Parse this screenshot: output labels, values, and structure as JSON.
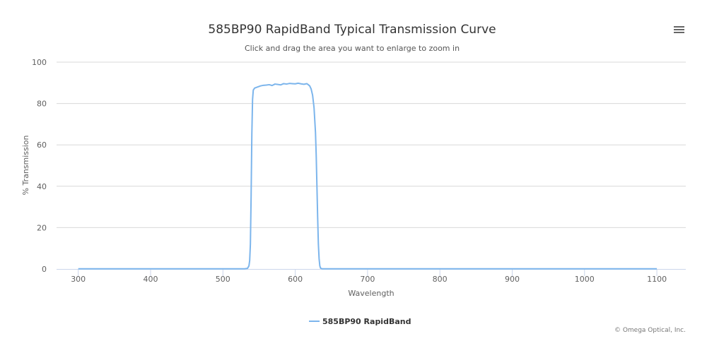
{
  "chart_data": {
    "type": "line",
    "title": "585BP90 RapidBand Typical Transmission Curve",
    "subtitle": "Click and drag the area you want to enlarge to zoom in",
    "xlabel": "Wavelength",
    "ylabel": "% Transmission",
    "xlim": [
      270,
      1140
    ],
    "ylim": [
      0,
      100
    ],
    "x_ticks": [
      300,
      400,
      500,
      600,
      700,
      800,
      900,
      1000,
      1100
    ],
    "y_ticks": [
      0,
      20,
      40,
      60,
      80,
      100
    ],
    "grid": true,
    "legend_position": "bottom-center",
    "series": [
      {
        "name": "585BP90 RapidBand",
        "color": "#7cb5ec",
        "points": [
          [
            300,
            0.1
          ],
          [
            400,
            0.1
          ],
          [
            500,
            0.1
          ],
          [
            530,
            0.1
          ],
          [
            534,
            0.3
          ],
          [
            536,
            1.5
          ],
          [
            537,
            4
          ],
          [
            538,
            12
          ],
          [
            539,
            35
          ],
          [
            540,
            65
          ],
          [
            541,
            82
          ],
          [
            542,
            86.5
          ],
          [
            544,
            87.5
          ],
          [
            548,
            88
          ],
          [
            552,
            88.5
          ],
          [
            556,
            88.8
          ],
          [
            560,
            88.9
          ],
          [
            564,
            89.1
          ],
          [
            568,
            88.7
          ],
          [
            572,
            89.4
          ],
          [
            576,
            89.2
          ],
          [
            580,
            89.0
          ],
          [
            584,
            89.6
          ],
          [
            588,
            89.4
          ],
          [
            592,
            89.7
          ],
          [
            596,
            89.6
          ],
          [
            600,
            89.5
          ],
          [
            604,
            89.8
          ],
          [
            608,
            89.5
          ],
          [
            612,
            89.3
          ],
          [
            616,
            89.6
          ],
          [
            618,
            89.1
          ],
          [
            620,
            88.5
          ],
          [
            622,
            87
          ],
          [
            624,
            84
          ],
          [
            626,
            78
          ],
          [
            628,
            66
          ],
          [
            629,
            55
          ],
          [
            630,
            40
          ],
          [
            631,
            25
          ],
          [
            632,
            12
          ],
          [
            633,
            5
          ],
          [
            634,
            1.5
          ],
          [
            635,
            0.4
          ],
          [
            637,
            0.1
          ],
          [
            700,
            0.1
          ],
          [
            800,
            0.1
          ],
          [
            900,
            0.1
          ],
          [
            1000,
            0.1
          ],
          [
            1100,
            0.1
          ]
        ]
      }
    ]
  },
  "credits": "© Omega Optical, Inc.",
  "menu_icon": "hamburger-menu-icon"
}
